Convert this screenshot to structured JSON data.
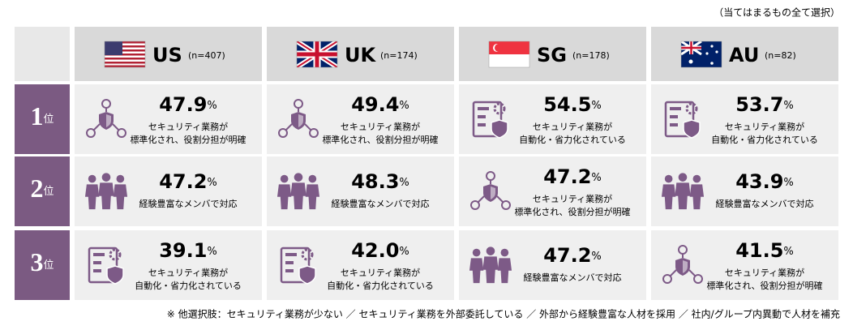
{
  "note": "（当てはまるもの全て選択）",
  "columns": [
    {
      "code": "US",
      "n": "(n=407)"
    },
    {
      "code": "UK",
      "n": "(n=174)"
    },
    {
      "code": "SG",
      "n": "(n=178)"
    },
    {
      "code": "AU",
      "n": "(n=82)"
    }
  ],
  "ranks": [
    "1",
    "2",
    "3"
  ],
  "rank_suffix": "位",
  "unit": "%",
  "rows": [
    {
      "cells": [
        {
          "value": "47.9",
          "lines": [
            "セキュリティ業務が",
            "標準化され、役割分担が明確"
          ]
        },
        {
          "value": "49.4",
          "lines": [
            "セキュリティ業務が",
            "標準化され、役割分担が明確"
          ]
        },
        {
          "value": "54.5",
          "lines": [
            "セキュリティ業務が",
            "自動化・省力化されている"
          ]
        },
        {
          "value": "53.7",
          "lines": [
            "セキュリティ業務が",
            "自動化・省力化されている"
          ]
        }
      ]
    },
    {
      "cells": [
        {
          "value": "47.2",
          "lines": [
            "経験豊富なメンバで対応"
          ]
        },
        {
          "value": "48.3",
          "lines": [
            "経験豊富なメンバで対応"
          ]
        },
        {
          "value": "47.2",
          "lines": [
            "セキュリティ業務が",
            "標準化され、役割分担が明確"
          ]
        },
        {
          "value": "43.9",
          "lines": [
            "経験豊富なメンバで対応"
          ]
        }
      ]
    },
    {
      "cells": [
        {
          "value": "39.1",
          "lines": [
            "セキュリティ業務が",
            "自動化・省力化されている"
          ]
        },
        {
          "value": "42.0",
          "lines": [
            "セキュリティ業務が",
            "自動化・省力化されている"
          ]
        },
        {
          "value": "47.2",
          "lines": [
            "経験豊富なメンバで対応"
          ]
        },
        {
          "value": "41.5",
          "lines": [
            "セキュリティ業務が",
            "標準化され、役割分担が明確"
          ]
        }
      ]
    }
  ],
  "footnote": "※ 他選択肢：セキュリティ業務が少ない ／ セキュリティ業務を外部委託している ／ 外部から経験豊富な人材を採用 ／ 社内/グループ内異動で人材を補充"
}
